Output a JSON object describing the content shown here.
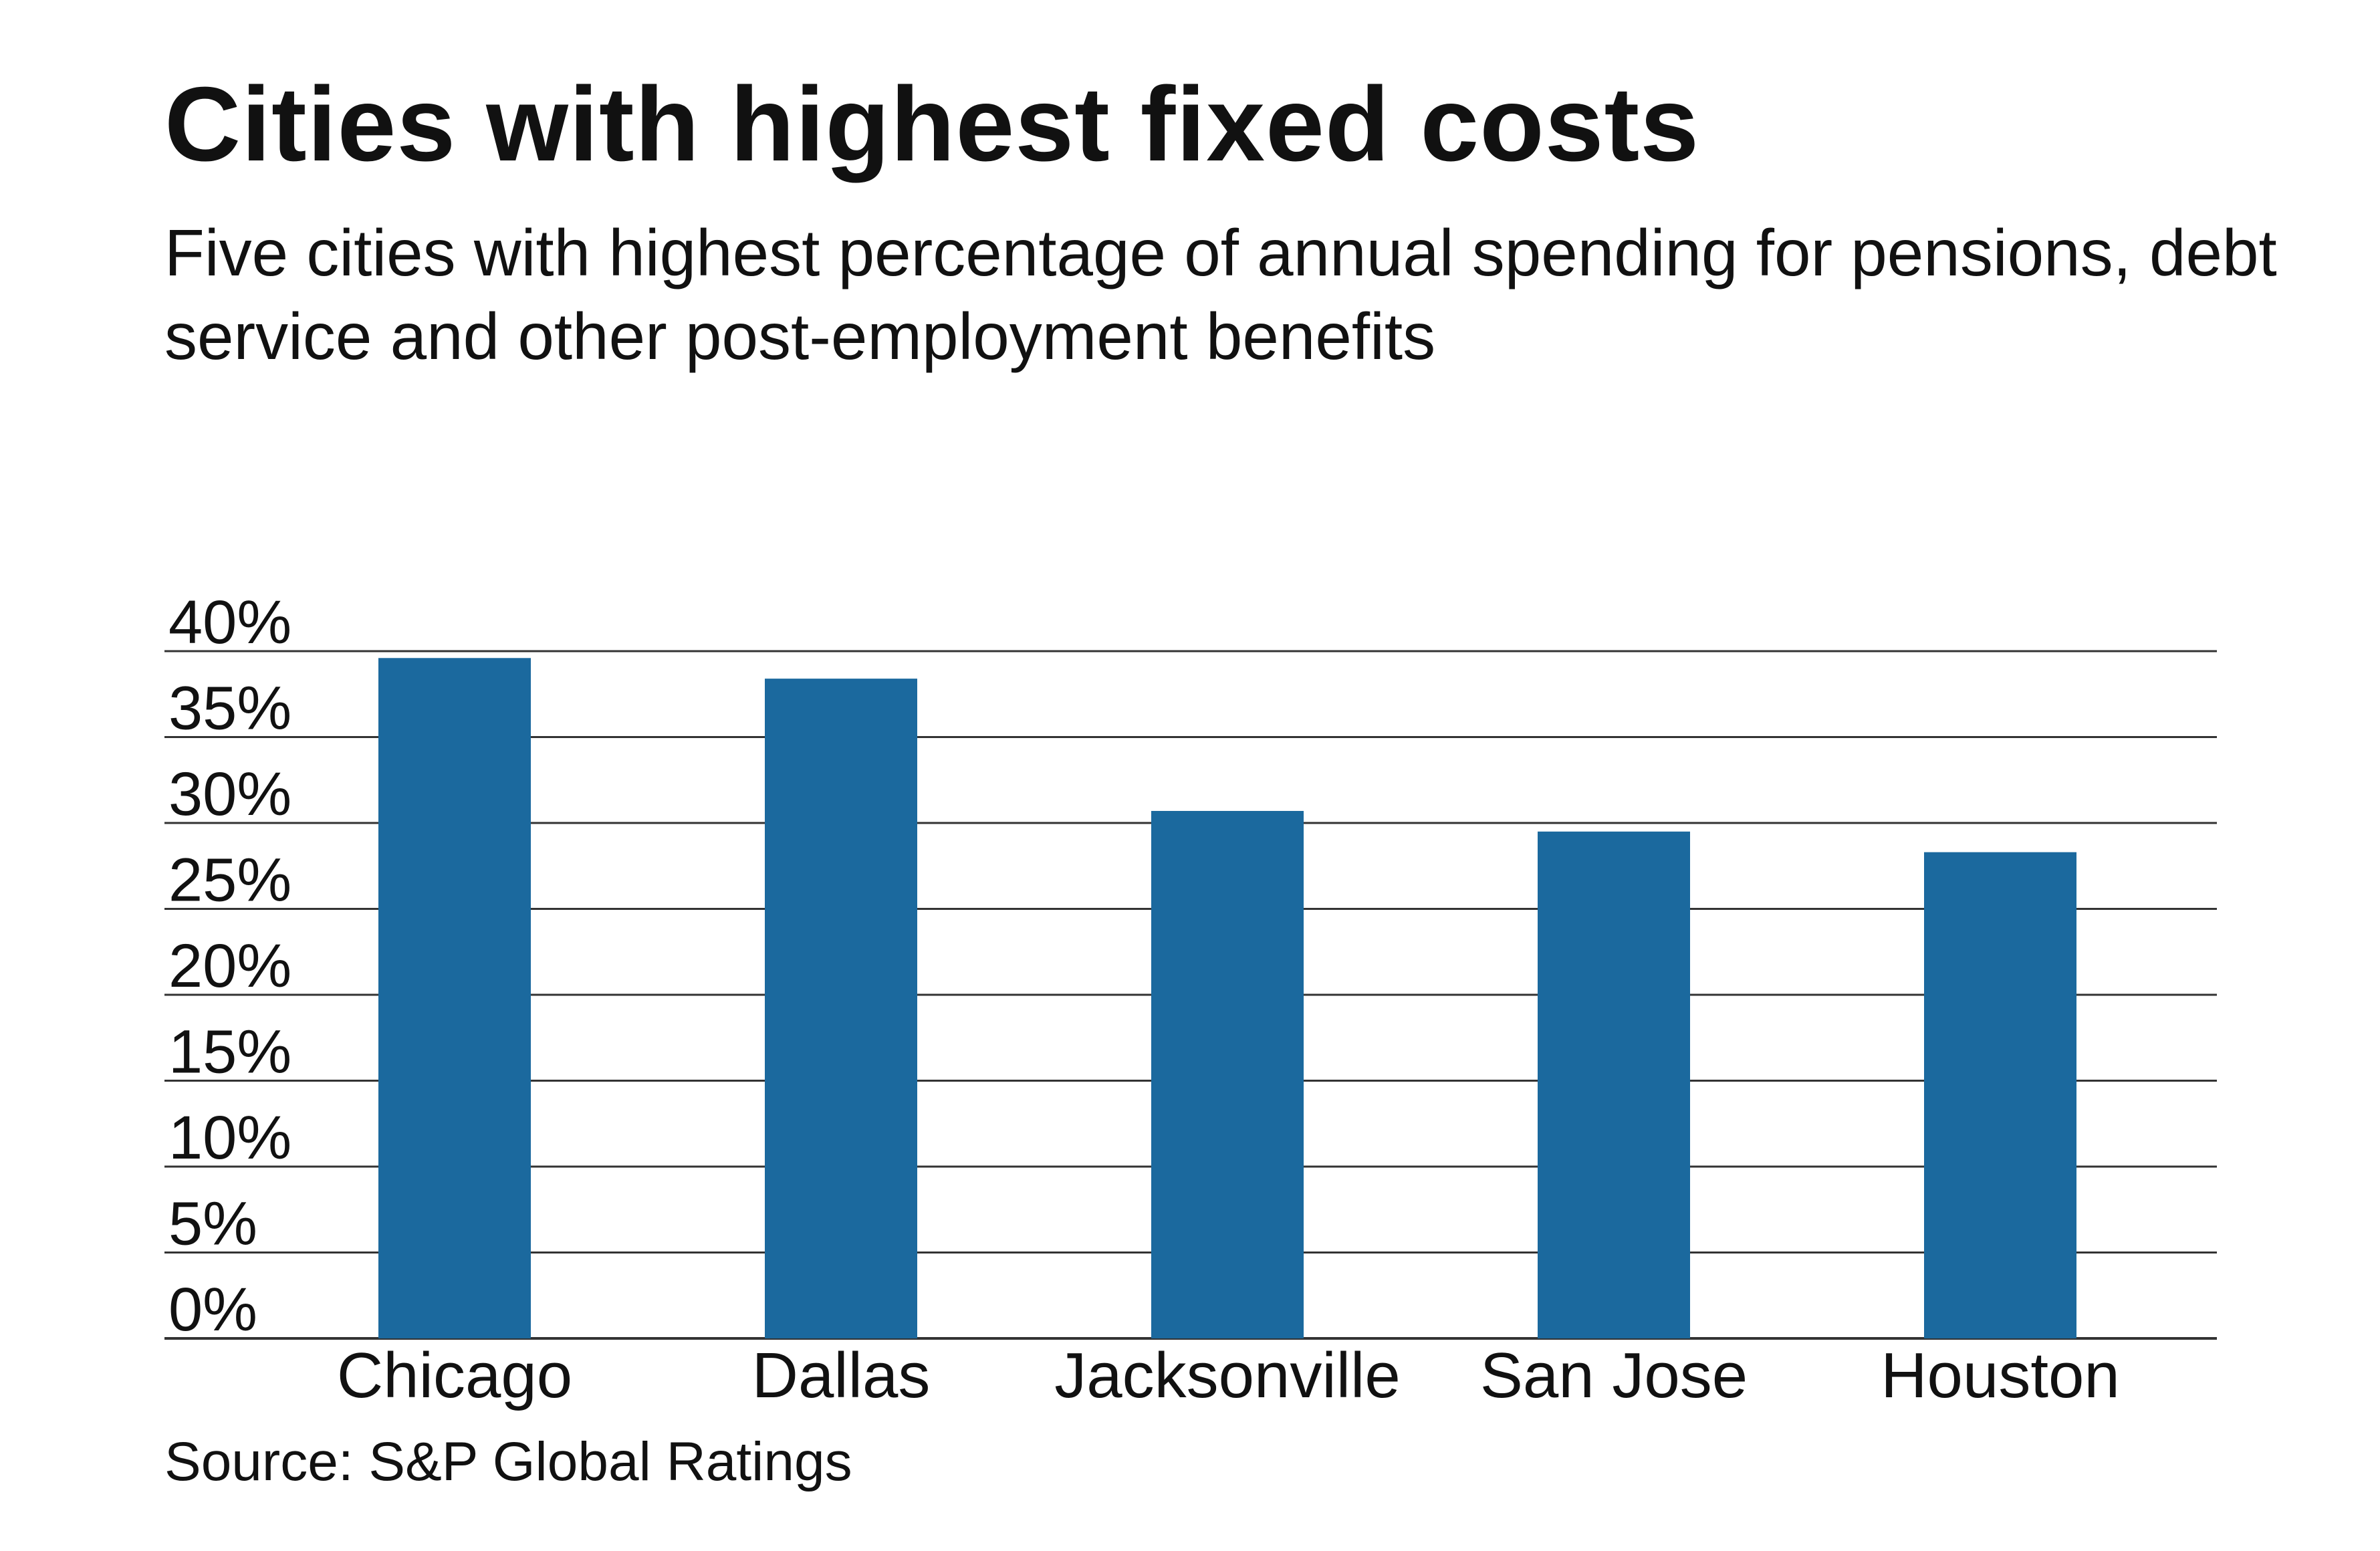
{
  "header": {
    "title": "Cities with highest fixed costs",
    "subtitle": "Five cities with highest percentage of annual spending for pensions, debt service and other post-employment benefits"
  },
  "footer": {
    "source": "Source: S&P Global Ratings"
  },
  "colors": {
    "bar": "#1b699e",
    "grid": "#333333",
    "text": "#111111"
  },
  "chart_data": {
    "type": "bar",
    "categories": [
      "Chicago",
      "Dallas",
      "Jacksonville",
      "San Jose",
      "Houston"
    ],
    "values": [
      39.6,
      38.4,
      30.7,
      29.5,
      28.3
    ],
    "title": "Cities with highest fixed costs",
    "subtitle": "Five cities with highest percentage of annual spending for pensions, debt service and other post-employment benefits",
    "xlabel": "",
    "ylabel": "",
    "ylim": [
      0,
      40
    ],
    "yticks": [
      0,
      5,
      10,
      15,
      20,
      25,
      30,
      35,
      40
    ],
    "ytick_labels": [
      "0%",
      "5%",
      "10%",
      "15%",
      "20%",
      "25%",
      "30%",
      "35%",
      "40%"
    ],
    "grid": true,
    "legend": "none"
  }
}
